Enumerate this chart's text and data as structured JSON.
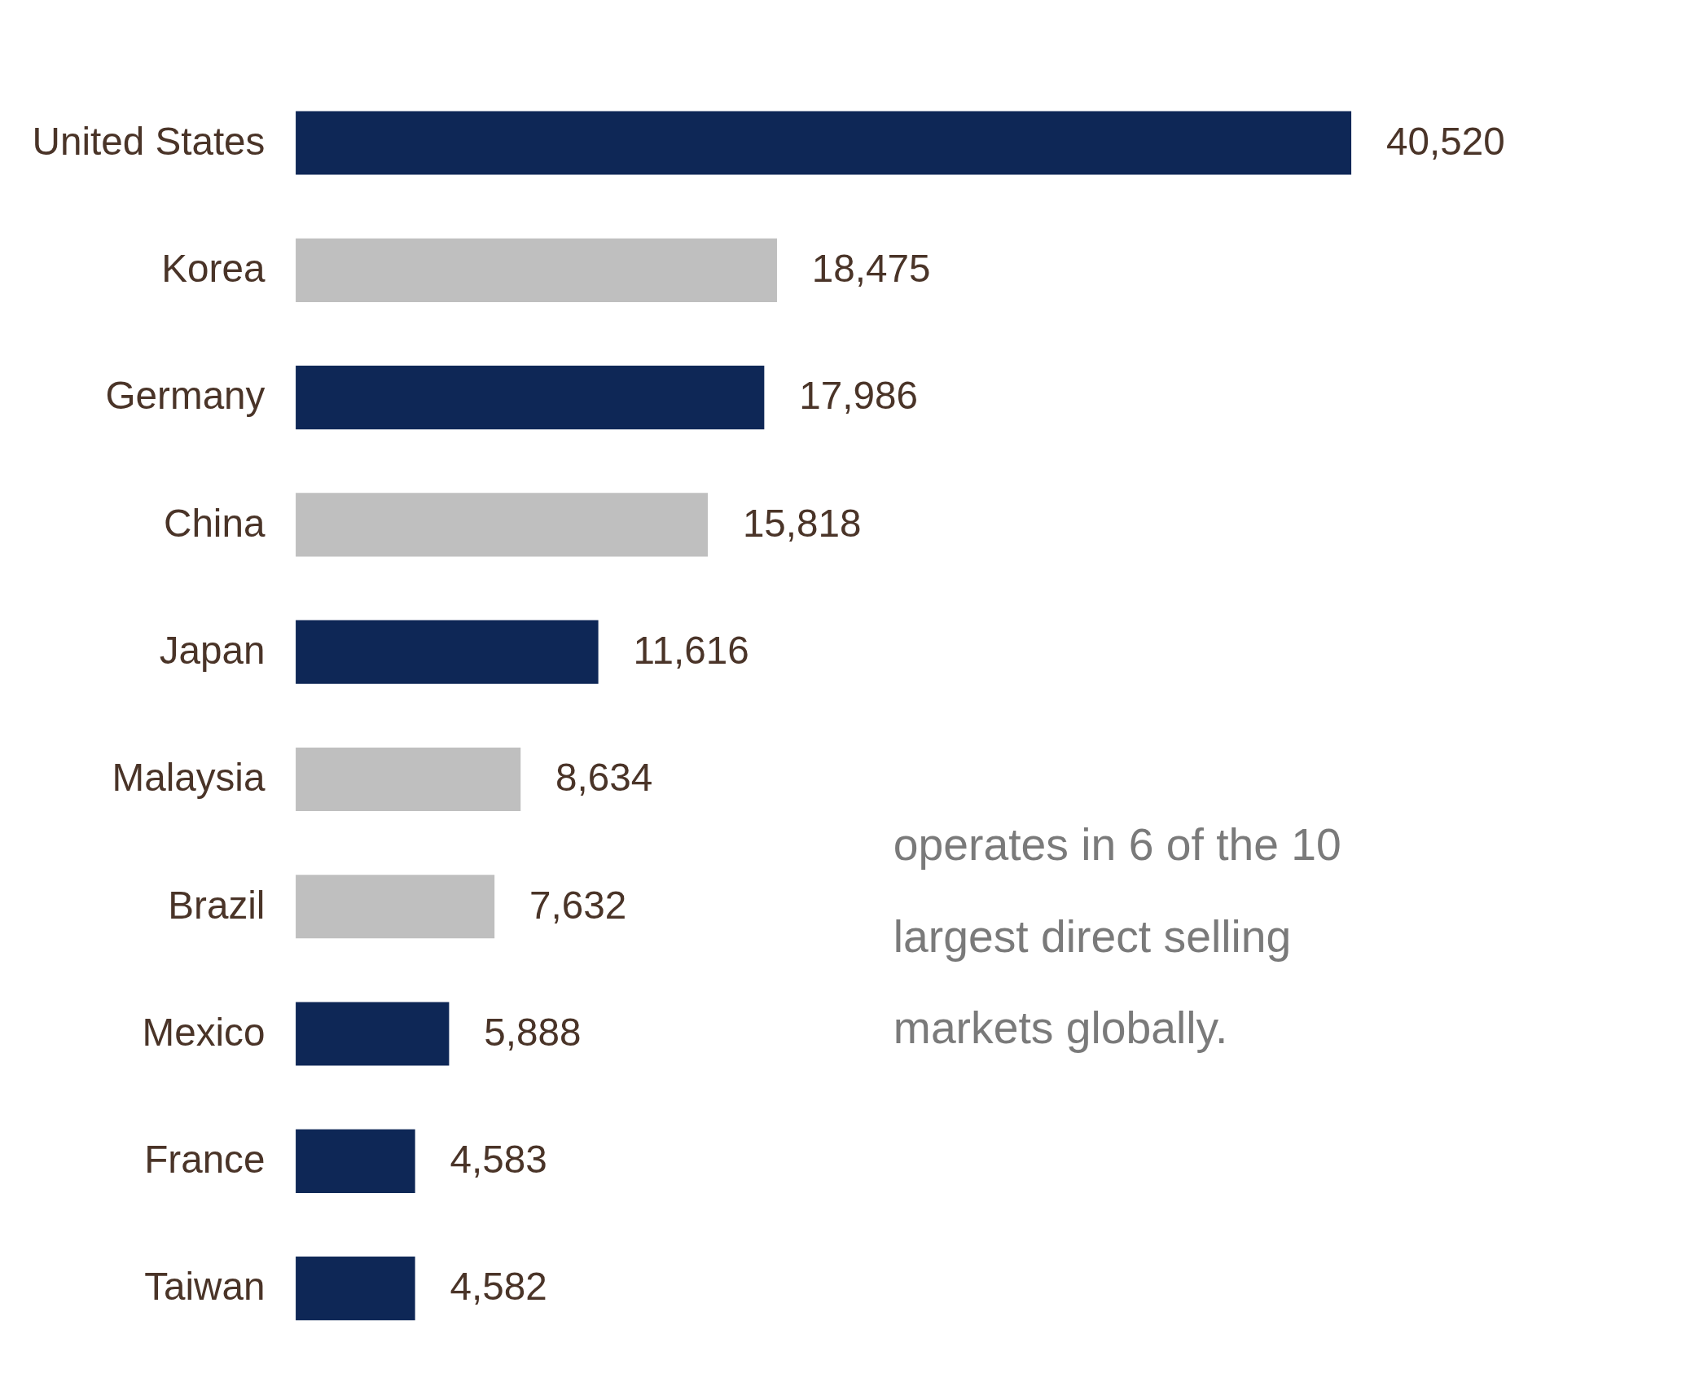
{
  "chart_data": {
    "type": "bar",
    "orientation": "horizontal",
    "value_labels": [
      "40,520",
      "18,475",
      "17,986",
      "15,818",
      "11,616",
      "8,634",
      "7,632",
      "5,888",
      "4,583",
      "4,582"
    ],
    "categories": [
      "United States",
      "Korea",
      "Germany",
      "China",
      "Japan",
      "Malaysia",
      "Brazil",
      "Mexico",
      "France",
      "Taiwan"
    ],
    "values": [
      40520,
      18475,
      17986,
      15818,
      11616,
      8634,
      7632,
      5888,
      4583,
      4582
    ],
    "colors": [
      "#0e2756",
      "#bfbfbf",
      "#0e2756",
      "#bfbfbf",
      "#0e2756",
      "#bfbfbf",
      "#bfbfbf",
      "#0e2756",
      "#0e2756",
      "#0e2756"
    ],
    "annotations": [
      "operates in 6 of the 10 largest direct selling markets globally."
    ]
  }
}
